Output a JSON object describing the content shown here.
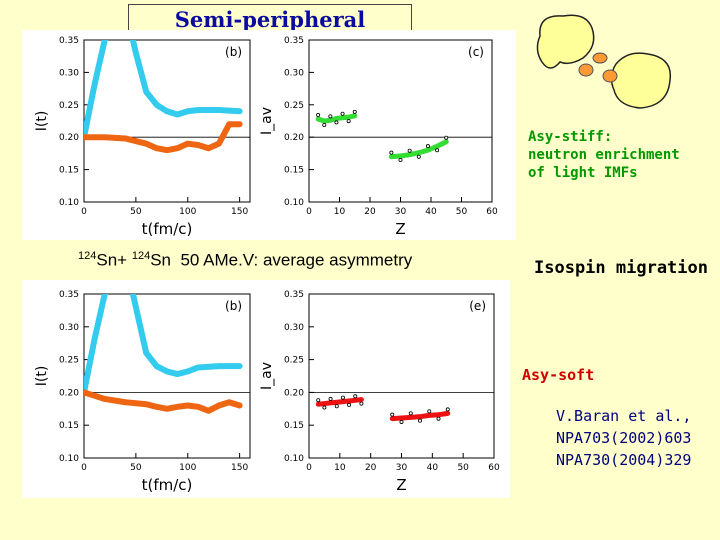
{
  "title": "Semi-peripheral collisions",
  "reaction": {
    "a_mass": "124",
    "a_sym": "Sn+",
    "b_mass": "124",
    "b_sym": "Sn",
    "rest": "50 AMe.V: average asymmetry"
  },
  "asy_stiff": {
    "line1": "Asy-stiff:",
    "line2": "neutron enrichment",
    "line3": "of light IMFs"
  },
  "isospin_migration": "Isospin migration",
  "asy_soft": "Asy-soft",
  "refs": [
    "V.Baran et al.,",
    "NPA703(2002)603",
    "NPA730(2004)329"
  ],
  "colors": {
    "cyan": "#33ccee",
    "orange": "#ee6611",
    "green": "#33dd33",
    "red": "#ee1111",
    "title": "#0a0aa0"
  },
  "diagram": {
    "icon": "nuclei-collision-diagram"
  },
  "chart_data": [
    {
      "type": "line",
      "panel": "top-left",
      "tag": "(b)",
      "xlabel": "t(fm/c)",
      "ylabel": "I(t)",
      "xlim": [
        0,
        160
      ],
      "ylim": [
        0.1,
        0.35
      ],
      "xticks": [
        "0",
        "50",
        "100",
        "150"
      ],
      "yticks": [
        "0.10",
        "0.15",
        "0.20",
        "0.25",
        "0.30",
        "0.35"
      ],
      "series": [
        {
          "color": "cyan",
          "x": [
            0,
            10,
            20,
            40,
            50,
            60,
            70,
            80,
            90,
            100,
            110,
            130,
            150
          ],
          "y": [
            0.2,
            0.28,
            0.35,
            0.4,
            0.33,
            0.27,
            0.25,
            0.24,
            0.235,
            0.24,
            0.242,
            0.242,
            0.24
          ]
        },
        {
          "color": "orange",
          "x": [
            0,
            10,
            20,
            40,
            60,
            70,
            80,
            90,
            100,
            110,
            120,
            130,
            140,
            150
          ],
          "y": [
            0.2,
            0.2,
            0.2,
            0.198,
            0.19,
            0.183,
            0.18,
            0.183,
            0.19,
            0.188,
            0.183,
            0.19,
            0.22,
            0.22
          ]
        }
      ]
    },
    {
      "type": "scatter",
      "panel": "top-right",
      "tag": "(c)",
      "xlabel": "Z",
      "ylabel": "I_av",
      "xlim": [
        0,
        60
      ],
      "ylim": [
        0.1,
        0.35
      ],
      "xticks": [
        "0",
        "10",
        "20",
        "30",
        "40",
        "50",
        "60"
      ],
      "yticks": [
        "0.10",
        "0.15",
        "0.20",
        "0.25",
        "0.30",
        "0.35"
      ],
      "series": [
        {
          "color": "green",
          "x": [
            3,
            5,
            7,
            9,
            11,
            13,
            15
          ],
          "y": [
            0.228,
            0.225,
            0.226,
            0.229,
            0.23,
            0.231,
            0.233
          ]
        },
        {
          "color": "green",
          "x": [
            27,
            30,
            33,
            36,
            39,
            42,
            45
          ],
          "y": [
            0.17,
            0.171,
            0.173,
            0.176,
            0.18,
            0.186,
            0.193
          ]
        }
      ]
    },
    {
      "type": "line",
      "panel": "bottom-left",
      "tag": "(b)",
      "xlabel": "t(fm/c)",
      "ylabel": "I(t)",
      "xlim": [
        0,
        160
      ],
      "ylim": [
        0.1,
        0.35
      ],
      "xticks": [
        "0",
        "50",
        "100",
        "150"
      ],
      "yticks": [
        "0.10",
        "0.15",
        "0.20",
        "0.25",
        "0.30",
        "0.35"
      ],
      "series": [
        {
          "color": "cyan",
          "x": [
            0,
            10,
            20,
            40,
            50,
            60,
            70,
            80,
            90,
            100,
            110,
            130,
            150
          ],
          "y": [
            0.2,
            0.28,
            0.35,
            0.4,
            0.33,
            0.26,
            0.24,
            0.232,
            0.228,
            0.232,
            0.238,
            0.24,
            0.24
          ]
        },
        {
          "color": "orange",
          "x": [
            0,
            10,
            20,
            40,
            60,
            70,
            80,
            90,
            100,
            110,
            120,
            130,
            140,
            150
          ],
          "y": [
            0.2,
            0.195,
            0.19,
            0.185,
            0.182,
            0.178,
            0.175,
            0.178,
            0.18,
            0.178,
            0.172,
            0.18,
            0.185,
            0.18
          ]
        }
      ]
    },
    {
      "type": "scatter",
      "panel": "bottom-right",
      "tag": "(e)",
      "xlabel": "Z",
      "ylabel": "I_av",
      "xlim": [
        0,
        60
      ],
      "ylim": [
        0.1,
        0.35
      ],
      "xticks": [
        "0",
        "10",
        "20",
        "30",
        "40",
        "50",
        "60"
      ],
      "yticks": [
        "0.10",
        "0.15",
        "0.20",
        "0.25",
        "0.30",
        "0.35"
      ],
      "series": [
        {
          "color": "red",
          "x": [
            3,
            5,
            7,
            9,
            11,
            13,
            15,
            17
          ],
          "y": [
            0.182,
            0.183,
            0.184,
            0.185,
            0.186,
            0.187,
            0.188,
            0.189
          ]
        },
        {
          "color": "red",
          "x": [
            27,
            30,
            33,
            36,
            39,
            42,
            45
          ],
          "y": [
            0.16,
            0.161,
            0.162,
            0.163,
            0.165,
            0.166,
            0.168
          ]
        }
      ]
    }
  ]
}
